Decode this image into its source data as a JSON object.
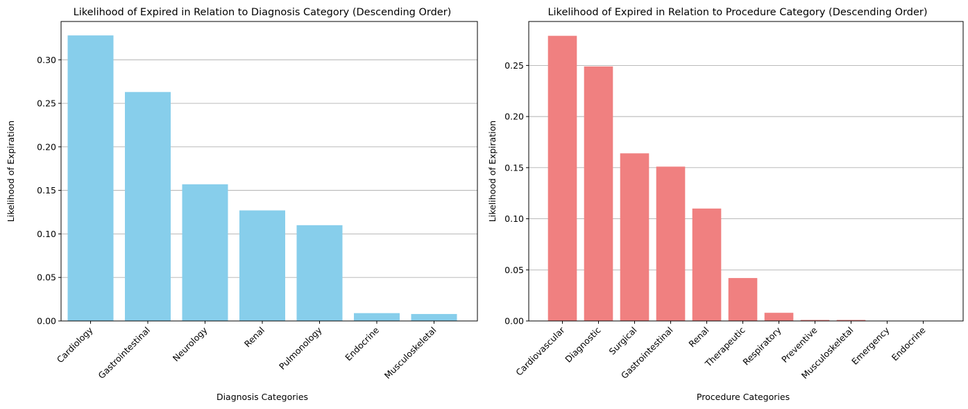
{
  "chart_data": [
    {
      "type": "bar",
      "title": "Likelihood of Expired in Relation to Diagnosis Category (Descending Order)",
      "xlabel": "Diagnosis Categories",
      "ylabel": "Likelihood of Expiration",
      "categories": [
        "Cardiology",
        "Gastrointestinal",
        "Neurology",
        "Renal",
        "Pulmonology",
        "Endocrine",
        "Musculoskeletal"
      ],
      "values": [
        0.328,
        0.263,
        0.157,
        0.127,
        0.11,
        0.009,
        0.008
      ],
      "ylim": [
        0,
        0.344
      ],
      "yticks": [
        "0.00",
        "0.05",
        "0.10",
        "0.15",
        "0.20",
        "0.25",
        "0.30"
      ],
      "color": "#87ceeb",
      "grid": "y"
    },
    {
      "type": "bar",
      "title": "Likelihood of Expired in Relation to Procedure Category (Descending Order)",
      "xlabel": "Procedure Categories",
      "ylabel": "Likelihood of Expiration",
      "categories": [
        "Cardiovascular",
        "Diagnostic",
        "Surgical",
        "Gastrointestinal",
        "Renal",
        "Therapeutic",
        "Respiratory",
        "Preventive",
        "Musculoskeletal",
        "Emergency",
        "Endocrine"
      ],
      "values": [
        0.279,
        0.249,
        0.164,
        0.151,
        0.11,
        0.042,
        0.008,
        0.001,
        0.001,
        0.0,
        0.0
      ],
      "ylim": [
        0,
        0.293
      ],
      "yticks": [
        "0.00",
        "0.05",
        "0.10",
        "0.15",
        "0.20",
        "0.25"
      ],
      "color": "#f08080",
      "grid": "y"
    }
  ]
}
